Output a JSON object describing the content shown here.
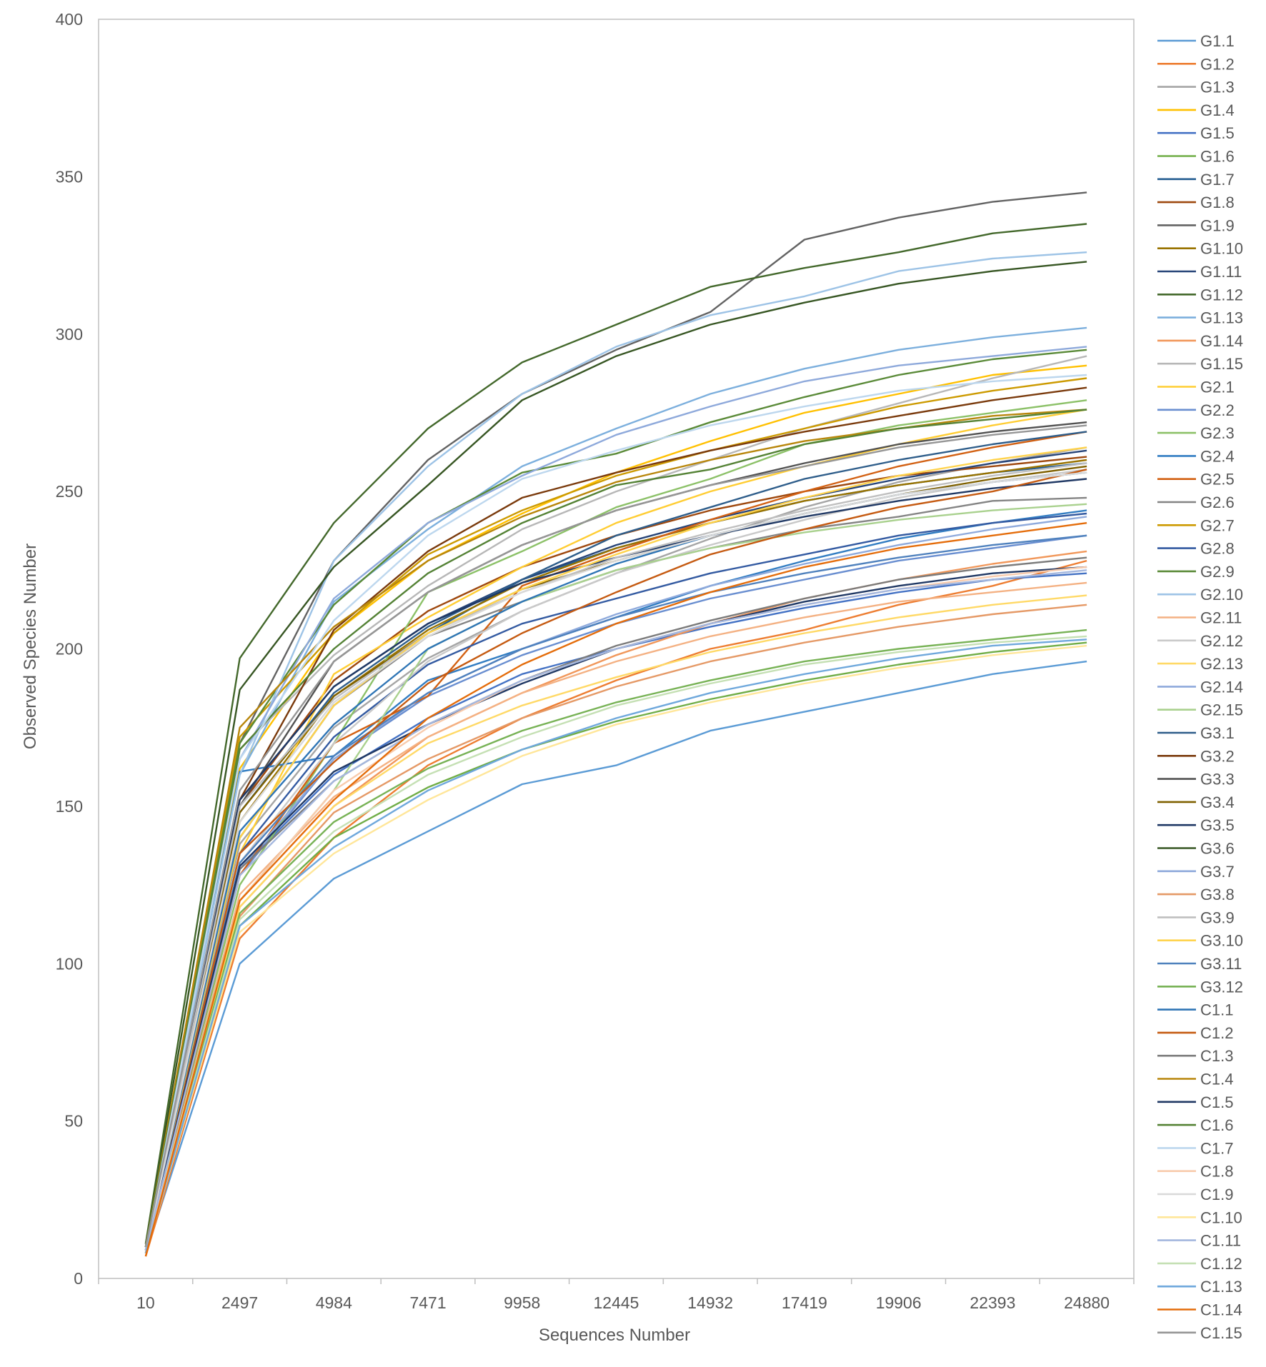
{
  "chart_data": {
    "type": "line",
    "title": "",
    "xlabel": "Sequences Number",
    "ylabel": "Observed Species Number",
    "ylim": [
      0,
      400
    ],
    "yticks": [
      "0",
      "50",
      "100",
      "150",
      "200",
      "250",
      "300",
      "350",
      "400"
    ],
    "categories": [
      "10",
      "2497",
      "4984",
      "7471",
      "9958",
      "12445",
      "14932",
      "17419",
      "19906",
      "22393",
      "24880"
    ],
    "grid": false,
    "legend_position": "right",
    "series": [
      {
        "name": "G1.1",
        "color": "#5b9bd5",
        "values": [
          8,
          100,
          127,
          142,
          157,
          163,
          174,
          180,
          186,
          192,
          196
        ]
      },
      {
        "name": "G1.2",
        "color": "#ed7d31",
        "values": [
          7,
          108,
          140,
          163,
          178,
          190,
          200,
          206,
          214,
          220,
          228
        ]
      },
      {
        "name": "G1.3",
        "color": "#a5a5a5",
        "values": [
          9,
          138,
          175,
          197,
          212,
          224,
          235,
          245,
          253,
          259,
          264
        ]
      },
      {
        "name": "G1.4",
        "color": "#ffc000",
        "values": [
          10,
          162,
          205,
          228,
          243,
          256,
          266,
          275,
          281,
          287,
          290
        ]
      },
      {
        "name": "G1.5",
        "color": "#4472c4",
        "values": [
          9,
          130,
          160,
          178,
          192,
          200,
          207,
          213,
          218,
          222,
          224
        ]
      },
      {
        "name": "G1.6",
        "color": "#70ad47",
        "values": [
          8,
          112,
          140,
          156,
          168,
          177,
          184,
          190,
          195,
          199,
          202
        ]
      },
      {
        "name": "G1.7",
        "color": "#255e91",
        "values": [
          9,
          140,
          182,
          205,
          222,
          232,
          240,
          247,
          252,
          256,
          259
        ]
      },
      {
        "name": "G1.8",
        "color": "#9e480e",
        "values": [
          10,
          150,
          190,
          212,
          226,
          236,
          244,
          250,
          255,
          258,
          261
        ]
      },
      {
        "name": "G1.9",
        "color": "#636363",
        "values": [
          11,
          170,
          228,
          260,
          281,
          295,
          307,
          330,
          337,
          342,
          345
        ]
      },
      {
        "name": "G1.10",
        "color": "#997300",
        "values": [
          9,
          145,
          185,
          206,
          221,
          232,
          240,
          247,
          252,
          256,
          260
        ]
      },
      {
        "name": "G1.11",
        "color": "#264478",
        "values": [
          10,
          152,
          188,
          208,
          222,
          233,
          241,
          248,
          254,
          259,
          263
        ]
      },
      {
        "name": "G1.12",
        "color": "#43682b",
        "values": [
          11,
          197,
          240,
          270,
          291,
          303,
          315,
          321,
          326,
          332,
          335
        ]
      },
      {
        "name": "G1.13",
        "color": "#7cafdd",
        "values": [
          10,
          160,
          215,
          238,
          258,
          270,
          281,
          289,
          295,
          299,
          302
        ]
      },
      {
        "name": "G1.14",
        "color": "#f1975a",
        "values": [
          8,
          118,
          150,
          172,
          186,
          198,
          208,
          216,
          222,
          227,
          231
        ]
      },
      {
        "name": "G1.15",
        "color": "#b7b7b7",
        "values": [
          10,
          168,
          198,
          220,
          238,
          250,
          260,
          270,
          278,
          286,
          293
        ]
      },
      {
        "name": "G2.1",
        "color": "#ffcd33",
        "values": [
          9,
          135,
          192,
          210,
          226,
          240,
          250,
          258,
          265,
          271,
          276
        ]
      },
      {
        "name": "G2.2",
        "color": "#698ed0",
        "values": [
          9,
          128,
          165,
          185,
          198,
          208,
          216,
          222,
          228,
          232,
          236
        ]
      },
      {
        "name": "G2.3",
        "color": "#8cc168",
        "values": [
          9,
          125,
          170,
          218,
          231,
          245,
          254,
          265,
          271,
          275,
          279
        ]
      },
      {
        "name": "G2.4",
        "color": "#327dc2",
        "values": [
          9,
          161,
          166,
          190,
          200,
          210,
          220,
          228,
          235,
          240,
          244
        ]
      },
      {
        "name": "G2.5",
        "color": "#d26012",
        "values": [
          8,
          128,
          170,
          185,
          220,
          231,
          241,
          250,
          258,
          264,
          269
        ]
      },
      {
        "name": "G2.6",
        "color": "#848484",
        "values": [
          10,
          140,
          182,
          204,
          215,
          225,
          232,
          238,
          242,
          247,
          248
        ]
      },
      {
        "name": "G2.7",
        "color": "#cc9a00",
        "values": [
          10,
          172,
          205,
          230,
          244,
          255,
          263,
          270,
          277,
          282,
          286
        ]
      },
      {
        "name": "G2.8",
        "color": "#335aa1",
        "values": [
          9,
          135,
          172,
          195,
          208,
          216,
          224,
          230,
          236,
          240,
          243
        ]
      },
      {
        "name": "G2.9",
        "color": "#5a8a38",
        "values": [
          10,
          170,
          214,
          240,
          256,
          262,
          272,
          280,
          287,
          292,
          295
        ]
      },
      {
        "name": "G2.10",
        "color": "#9dc3e6",
        "values": [
          10,
          160,
          228,
          258,
          281,
          296,
          306,
          312,
          320,
          324,
          326
        ]
      },
      {
        "name": "G2.11",
        "color": "#f4b183",
        "values": [
          8,
          122,
          153,
          172,
          186,
          196,
          204,
          210,
          215,
          218,
          221
        ]
      },
      {
        "name": "G2.12",
        "color": "#c9c9c9",
        "values": [
          9,
          132,
          170,
          196,
          212,
          224,
          233,
          241,
          248,
          253,
          257
        ]
      },
      {
        "name": "G2.13",
        "color": "#ffd966",
        "values": [
          8,
          118,
          150,
          170,
          182,
          191,
          199,
          205,
          210,
          214,
          217
        ]
      },
      {
        "name": "G2.14",
        "color": "#8faadc",
        "values": [
          9,
          130,
          165,
          186,
          200,
          211,
          220,
          227,
          233,
          238,
          242
        ]
      },
      {
        "name": "G2.15",
        "color": "#a9d18e",
        "values": [
          9,
          120,
          155,
          200,
          215,
          225,
          232,
          237,
          241,
          244,
          246
        ]
      },
      {
        "name": "G3.1",
        "color": "#2e5d8a",
        "values": [
          9,
          148,
          186,
          207,
          222,
          236,
          245,
          254,
          260,
          265,
          269
        ]
      },
      {
        "name": "G3.2",
        "color": "#7a3a0c",
        "values": [
          9,
          152,
          206,
          231,
          248,
          256,
          263,
          269,
          274,
          279,
          283
        ]
      },
      {
        "name": "G3.3",
        "color": "#525252",
        "values": [
          10,
          150,
          196,
          218,
          233,
          244,
          252,
          259,
          265,
          269,
          272
        ]
      },
      {
        "name": "G3.4",
        "color": "#7f6000",
        "values": [
          9,
          148,
          185,
          205,
          219,
          228,
          236,
          243,
          249,
          254,
          258
        ]
      },
      {
        "name": "G3.5",
        "color": "#1f3864",
        "values": [
          9,
          152,
          188,
          208,
          221,
          229,
          236,
          242,
          247,
          251,
          254
        ]
      },
      {
        "name": "G3.6",
        "color": "#375623",
        "values": [
          10,
          187,
          226,
          252,
          279,
          293,
          303,
          310,
          316,
          320,
          323
        ]
      },
      {
        "name": "G3.7",
        "color": "#8ea9db",
        "values": [
          9,
          165,
          216,
          240,
          255,
          268,
          277,
          285,
          290,
          293,
          296
        ]
      },
      {
        "name": "G3.8",
        "color": "#e59966",
        "values": [
          8,
          115,
          148,
          165,
          178,
          188,
          196,
          202,
          207,
          211,
          214
        ]
      },
      {
        "name": "G3.9",
        "color": "#bfbfbf",
        "values": [
          9,
          150,
          184,
          205,
          218,
          229,
          237,
          244,
          250,
          255,
          259
        ]
      },
      {
        "name": "G3.10",
        "color": "#ffd34d",
        "values": [
          9,
          140,
          182,
          205,
          219,
          230,
          240,
          248,
          255,
          260,
          264
        ]
      },
      {
        "name": "G3.11",
        "color": "#4f81bd",
        "values": [
          9,
          132,
          166,
          186,
          200,
          210,
          218,
          224,
          229,
          233,
          236
        ]
      },
      {
        "name": "G3.12",
        "color": "#77b255",
        "values": [
          8,
          116,
          145,
          162,
          174,
          183,
          190,
          196,
          200,
          203,
          206
        ]
      },
      {
        "name": "C1.1",
        "color": "#2f75b5",
        "values": [
          9,
          142,
          176,
          200,
          215,
          227,
          236,
          243,
          249,
          253,
          256
        ]
      },
      {
        "name": "C1.2",
        "color": "#c55a11",
        "values": [
          8,
          135,
          164,
          189,
          205,
          218,
          230,
          238,
          245,
          250,
          257
        ]
      },
      {
        "name": "C1.3",
        "color": "#7b7b7b",
        "values": [
          9,
          130,
          158,
          176,
          190,
          201,
          209,
          216,
          222,
          226,
          229
        ]
      },
      {
        "name": "C1.4",
        "color": "#b8860b",
        "values": [
          10,
          175,
          207,
          228,
          242,
          253,
          260,
          266,
          270,
          274,
          276
        ]
      },
      {
        "name": "C1.5",
        "color": "#203864",
        "values": [
          9,
          131,
          161,
          176,
          189,
          200,
          208,
          215,
          220,
          224,
          226
        ]
      },
      {
        "name": "C1.6",
        "color": "#548235",
        "values": [
          10,
          168,
          200,
          224,
          240,
          252,
          257,
          265,
          270,
          273,
          276
        ]
      },
      {
        "name": "C1.7",
        "color": "#bdd7ee",
        "values": [
          9,
          165,
          209,
          236,
          254,
          263,
          271,
          277,
          282,
          285,
          287
        ]
      },
      {
        "name": "C1.8",
        "color": "#f8cbad",
        "values": [
          8,
          120,
          155,
          175,
          190,
          200,
          208,
          214,
          219,
          223,
          226
        ]
      },
      {
        "name": "C1.9",
        "color": "#d9d9d9",
        "values": [
          9,
          145,
          183,
          204,
          218,
          228,
          236,
          243,
          249,
          253,
          256
        ]
      },
      {
        "name": "C1.10",
        "color": "#ffe699",
        "values": [
          8,
          110,
          135,
          152,
          166,
          176,
          183,
          189,
          194,
          198,
          201
        ]
      },
      {
        "name": "C1.11",
        "color": "#a4b7de",
        "values": [
          9,
          128,
          158,
          176,
          190,
          200,
          208,
          214,
          219,
          222,
          225
        ]
      },
      {
        "name": "C1.12",
        "color": "#c5e0b4",
        "values": [
          8,
          114,
          142,
          160,
          172,
          182,
          189,
          195,
          199,
          202,
          204
        ]
      },
      {
        "name": "C1.13",
        "color": "#6fa8dc",
        "values": [
          8,
          112,
          137,
          155,
          168,
          178,
          186,
          192,
          197,
          201,
          203
        ]
      },
      {
        "name": "C1.14",
        "color": "#e46c0a",
        "values": [
          7,
          120,
          152,
          178,
          195,
          208,
          218,
          226,
          232,
          236,
          240
        ]
      },
      {
        "name": "C1.15",
        "color": "#969696",
        "values": [
          10,
          155,
          196,
          218,
          233,
          244,
          252,
          258,
          264,
          268,
          271
        ]
      }
    ]
  }
}
